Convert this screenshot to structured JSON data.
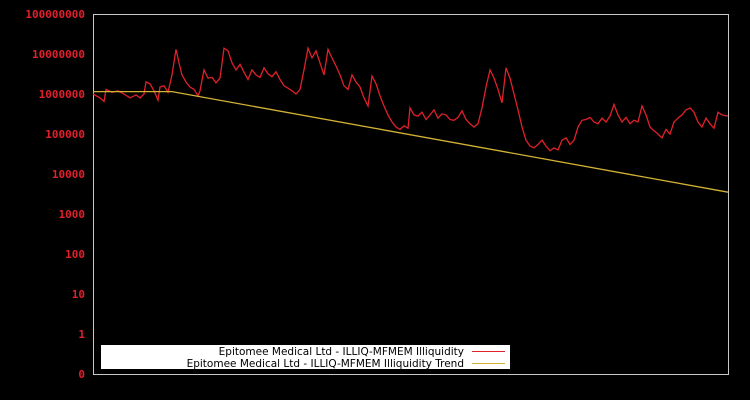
{
  "chart_data": {
    "type": "line",
    "title": "",
    "xlabel": "",
    "ylabel": "",
    "yscale": "log",
    "ylim": [
      0,
      100000000
    ],
    "y_tick_labels": [
      "0",
      "1",
      "10",
      "100",
      "1000",
      "10000",
      "100000",
      "1000000",
      "10000000",
      "100000000"
    ],
    "x_tick_labels": [],
    "grid": false,
    "legend_position": "lower-left",
    "background": "#000000",
    "frame_color": "#c8c8c8",
    "series": [
      {
        "name": "Epitomee Medical Ltd - ILLIQ-MFMEM Illiquidity",
        "color": "#e0202a",
        "points_px_note": "x in plot pixels 93-728, values approximated from log axis",
        "values": [
          [
            93,
            1000000
          ],
          [
            100,
            800000
          ],
          [
            104,
            650000
          ],
          [
            106,
            1300000
          ],
          [
            112,
            1100000
          ],
          [
            118,
            1200000
          ],
          [
            124,
            1000000
          ],
          [
            130,
            800000
          ],
          [
            136,
            950000
          ],
          [
            140,
            800000
          ],
          [
            144,
            1000000
          ],
          [
            146,
            2000000
          ],
          [
            150,
            1800000
          ],
          [
            154,
            1200000
          ],
          [
            158,
            700000
          ],
          [
            160,
            1500000
          ],
          [
            164,
            1600000
          ],
          [
            168,
            1100000
          ],
          [
            172,
            3000000
          ],
          [
            176,
            13000000
          ],
          [
            179,
            6000000
          ],
          [
            182,
            3000000
          ],
          [
            186,
            2000000
          ],
          [
            190,
            1500000
          ],
          [
            194,
            1300000
          ],
          [
            198,
            900000
          ],
          [
            200,
            1200000
          ],
          [
            204,
            4000000
          ],
          [
            208,
            2500000
          ],
          [
            212,
            2600000
          ],
          [
            216,
            1900000
          ],
          [
            220,
            2500000
          ],
          [
            224,
            14000000
          ],
          [
            228,
            12000000
          ],
          [
            232,
            6000000
          ],
          [
            236,
            4000000
          ],
          [
            240,
            5500000
          ],
          [
            244,
            3500000
          ],
          [
            248,
            2300000
          ],
          [
            252,
            4000000
          ],
          [
            256,
            3000000
          ],
          [
            260,
            2600000
          ],
          [
            264,
            4500000
          ],
          [
            268,
            3200000
          ],
          [
            272,
            2700000
          ],
          [
            276,
            3600000
          ],
          [
            280,
            2300000
          ],
          [
            284,
            1600000
          ],
          [
            288,
            1400000
          ],
          [
            292,
            1200000
          ],
          [
            296,
            1000000
          ],
          [
            300,
            1300000
          ],
          [
            304,
            4000000
          ],
          [
            308,
            14000000
          ],
          [
            312,
            8000000
          ],
          [
            316,
            12000000
          ],
          [
            320,
            6000000
          ],
          [
            324,
            3000000
          ],
          [
            328,
            13000000
          ],
          [
            332,
            8000000
          ],
          [
            336,
            5000000
          ],
          [
            340,
            3000000
          ],
          [
            344,
            1600000
          ],
          [
            348,
            1300000
          ],
          [
            352,
            3000000
          ],
          [
            356,
            2000000
          ],
          [
            360,
            1500000
          ],
          [
            364,
            800000
          ],
          [
            368,
            500000
          ],
          [
            372,
            2800000
          ],
          [
            376,
            1800000
          ],
          [
            380,
            900000
          ],
          [
            384,
            500000
          ],
          [
            388,
            300000
          ],
          [
            392,
            200000
          ],
          [
            396,
            150000
          ],
          [
            400,
            130000
          ],
          [
            404,
            160000
          ],
          [
            408,
            140000
          ],
          [
            410,
            450000
          ],
          [
            414,
            300000
          ],
          [
            418,
            280000
          ],
          [
            422,
            350000
          ],
          [
            426,
            230000
          ],
          [
            430,
            300000
          ],
          [
            434,
            400000
          ],
          [
            438,
            250000
          ],
          [
            442,
            320000
          ],
          [
            446,
            300000
          ],
          [
            450,
            230000
          ],
          [
            454,
            220000
          ],
          [
            458,
            260000
          ],
          [
            462,
            380000
          ],
          [
            466,
            230000
          ],
          [
            470,
            180000
          ],
          [
            474,
            150000
          ],
          [
            478,
            180000
          ],
          [
            482,
            450000
          ],
          [
            486,
            1500000
          ],
          [
            490,
            4000000
          ],
          [
            494,
            2500000
          ],
          [
            498,
            1300000
          ],
          [
            502,
            600000
          ],
          [
            506,
            4500000
          ],
          [
            510,
            2500000
          ],
          [
            514,
            1000000
          ],
          [
            518,
            400000
          ],
          [
            522,
            150000
          ],
          [
            526,
            70000
          ],
          [
            530,
            50000
          ],
          [
            534,
            45000
          ],
          [
            538,
            55000
          ],
          [
            542,
            70000
          ],
          [
            546,
            50000
          ],
          [
            550,
            38000
          ],
          [
            554,
            45000
          ],
          [
            558,
            40000
          ],
          [
            562,
            70000
          ],
          [
            566,
            80000
          ],
          [
            570,
            55000
          ],
          [
            574,
            70000
          ],
          [
            578,
            150000
          ],
          [
            582,
            220000
          ],
          [
            586,
            230000
          ],
          [
            590,
            260000
          ],
          [
            594,
            200000
          ],
          [
            598,
            180000
          ],
          [
            602,
            250000
          ],
          [
            606,
            200000
          ],
          [
            610,
            280000
          ],
          [
            614,
            550000
          ],
          [
            618,
            300000
          ],
          [
            622,
            200000
          ],
          [
            626,
            260000
          ],
          [
            630,
            180000
          ],
          [
            634,
            220000
          ],
          [
            638,
            200000
          ],
          [
            642,
            500000
          ],
          [
            646,
            300000
          ],
          [
            650,
            150000
          ],
          [
            654,
            120000
          ],
          [
            658,
            100000
          ],
          [
            662,
            80000
          ],
          [
            666,
            130000
          ],
          [
            670,
            100000
          ],
          [
            674,
            200000
          ],
          [
            678,
            250000
          ],
          [
            682,
            300000
          ],
          [
            686,
            400000
          ],
          [
            690,
            450000
          ],
          [
            694,
            350000
          ],
          [
            698,
            200000
          ],
          [
            702,
            150000
          ],
          [
            706,
            250000
          ],
          [
            710,
            180000
          ],
          [
            714,
            140000
          ],
          [
            718,
            350000
          ],
          [
            722,
            300000
          ],
          [
            728,
            280000
          ]
        ]
      },
      {
        "name": "Epitomee Medical Ltd - ILLIQ-MFMEM Illiquidity Trend",
        "color": "#d4b234",
        "values": [
          [
            93,
            1150000
          ],
          [
            172,
            1150000
          ],
          [
            728,
            3500
          ]
        ]
      }
    ]
  },
  "legend": {
    "items": [
      {
        "label": "Epitomee Medical Ltd - ILLIQ-MFMEM Illiquidity",
        "color": "#e0202a"
      },
      {
        "label": "Epitomee Medical Ltd - ILLIQ-MFMEM Illiquidity Trend",
        "color": "#d4b234"
      }
    ]
  }
}
